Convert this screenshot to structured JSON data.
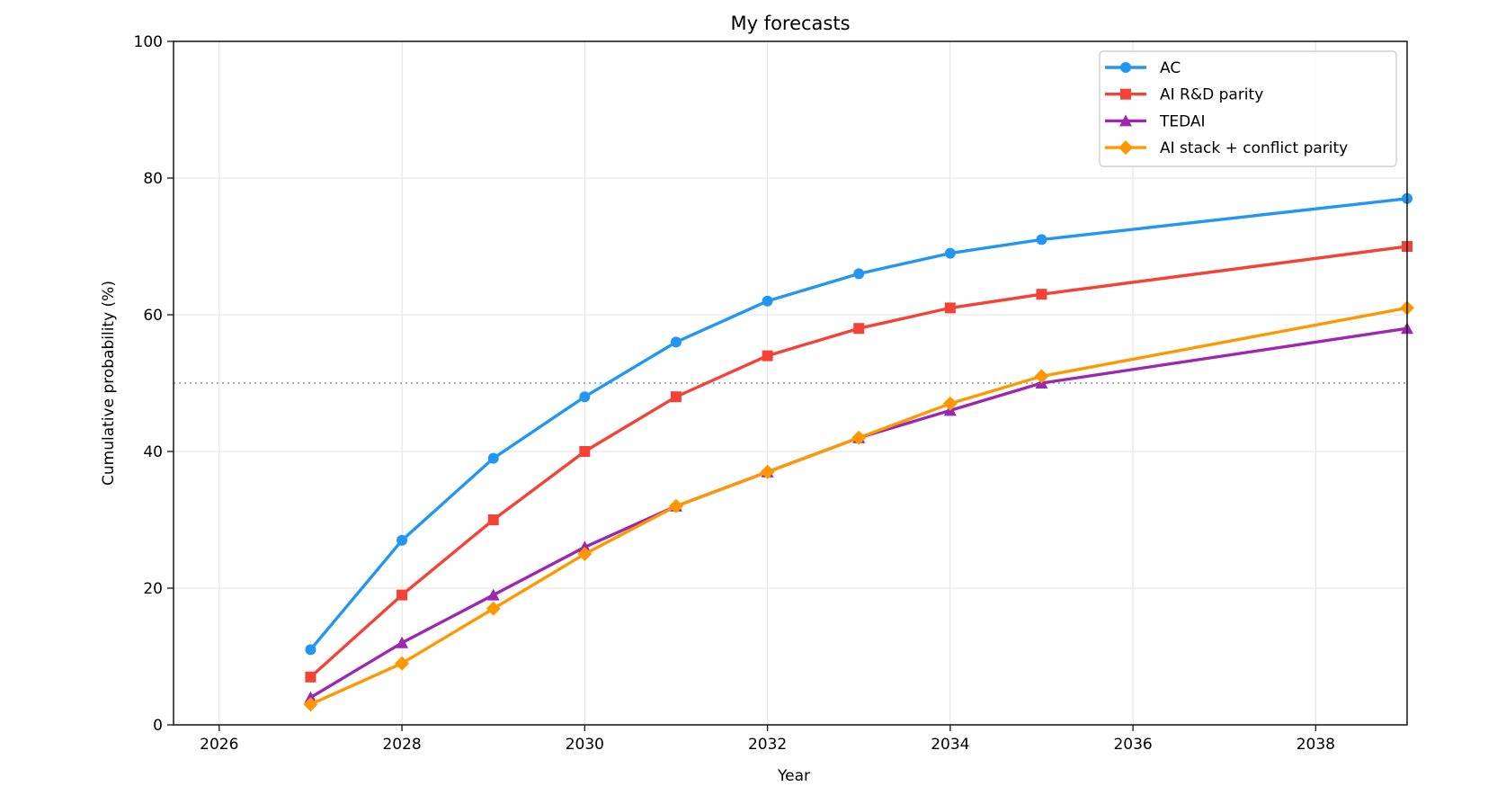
{
  "chart_data": {
    "type": "line",
    "title": "My forecasts",
    "xlabel": "Year",
    "ylabel": "Cumulative probability (%)",
    "xlim": [
      2025.5,
      2039
    ],
    "ylim": [
      0,
      100
    ],
    "x_ticks": [
      2026,
      2028,
      2030,
      2032,
      2034,
      2036,
      2038
    ],
    "y_ticks": [
      0,
      20,
      40,
      60,
      80,
      100
    ],
    "grid": true,
    "reference_line": {
      "y": 50,
      "style": "dotted",
      "color": "#b0b0b0"
    },
    "legend_position": "upper right",
    "x": [
      2027,
      2028,
      2029,
      2030,
      2031,
      2032,
      2033,
      2034,
      2035,
      2039
    ],
    "series": [
      {
        "name": "AC",
        "color": "#2196f3",
        "marker": "circle",
        "values": [
          11,
          27,
          39,
          48,
          56,
          62,
          66,
          69,
          71,
          77
        ]
      },
      {
        "name": "AI R&D parity",
        "color": "#f44336",
        "marker": "square",
        "values": [
          7,
          19,
          30,
          40,
          48,
          54,
          58,
          61,
          63,
          70
        ]
      },
      {
        "name": "TEDAI",
        "color": "#9c27b0",
        "marker": "triangle",
        "values": [
          4,
          12,
          19,
          26,
          32,
          37,
          42,
          46,
          50,
          58
        ]
      },
      {
        "name": "AI stack + conflict parity",
        "color": "#ff9800",
        "marker": "diamond",
        "values": [
          3,
          9,
          17,
          25,
          32,
          37,
          42,
          47,
          51,
          61
        ]
      }
    ]
  }
}
